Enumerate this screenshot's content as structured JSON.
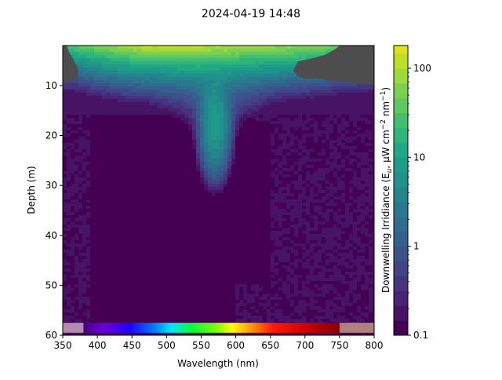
{
  "chart_data": {
    "type": "contour",
    "title": "2024-04-19 14:48",
    "xlabel": "Wavelength (nm)",
    "ylabel": "Depth (m)",
    "colorbar_label": "Downwelling Irridiance (E",
    "colorbar_label_sub": "u",
    "colorbar_label_rest": ", μW cm",
    "colorbar_label_sup": "−2",
    "colorbar_label_mid": " nm",
    "colorbar_label_sup2": "−1",
    "colorbar_label_end": ")",
    "xlim": [
      350,
      800
    ],
    "ylim": [
      60,
      2
    ],
    "x_ticks": [
      350,
      400,
      450,
      500,
      550,
      600,
      650,
      700,
      750,
      800
    ],
    "y_ticks": [
      10,
      20,
      30,
      40,
      50,
      60
    ],
    "colorbar_scale": "log",
    "colorbar_range": [
      0.1,
      180
    ],
    "colorbar_ticks": [
      0.1,
      1,
      10,
      100
    ],
    "colorbar_tick_labels": [
      "0.1",
      "1",
      "10",
      "100"
    ],
    "levels": [
      0.1,
      0.146,
      0.215,
      0.316,
      0.464,
      0.681,
      1.0,
      1.47,
      2.15,
      3.16,
      4.64,
      6.81,
      10,
      14.7,
      21.5,
      31.6,
      46.4,
      68.1,
      100,
      147
    ],
    "level_colors": [
      "#440154",
      "#471365",
      "#482475",
      "#463480",
      "#414487",
      "#3b528b",
      "#355f8d",
      "#2f6c8e",
      "#2a788e",
      "#25858e",
      "#21918c",
      "#1e9c89",
      "#22a884",
      "#2fb47c",
      "#44bf70",
      "#5ec962",
      "#7ad151",
      "#9bd93c",
      "#bddf26",
      "#dfe318"
    ],
    "no_data_color": "#4d4d4d",
    "surface_profile_uW": [
      {
        "wavelength": 350,
        "value": 25
      },
      {
        "wavelength": 400,
        "value": 60
      },
      {
        "wavelength": 450,
        "value": 110
      },
      {
        "wavelength": 500,
        "value": 130
      },
      {
        "wavelength": 550,
        "value": 130
      },
      {
        "wavelength": 600,
        "value": 110
      },
      {
        "wavelength": 650,
        "value": 90
      },
      {
        "wavelength": 700,
        "value": 70
      },
      {
        "wavelength": 750,
        "value": 45
      }
    ],
    "spectrum_bar": {
      "start_nm": 380,
      "end_nm": 750
    }
  }
}
